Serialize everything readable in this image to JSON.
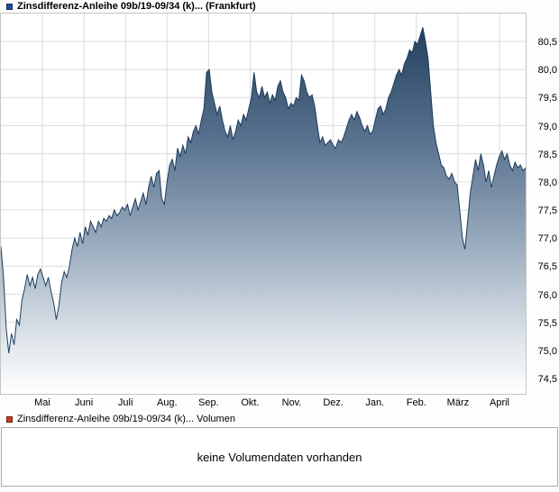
{
  "price_panel": {
    "legend_label": "Zinsdifferenz-Anleihe 09b/19-09/34 (k)... (Frankfurt)",
    "legend_color": "#1d4f9c"
  },
  "volume_panel": {
    "legend_label": "Zinsdifferenz-Anleihe 09b/19-09/34 (k)... Volumen",
    "legend_color": "#c23b22",
    "message": "keine Volumendaten vorhanden"
  },
  "chart_data": {
    "type": "area",
    "title": "Zinsdifferenz-Anleihe 09b/19-09/34 (k)... (Frankfurt)",
    "xlabel": "",
    "ylabel": "",
    "x_tick_labels": [
      "Mai",
      "Juni",
      "Juli",
      "Aug.",
      "Sep.",
      "Okt.",
      "Nov.",
      "Dez.",
      "Jan.",
      "Feb.",
      "März",
      "April"
    ],
    "y_tick_labels": [
      "80,5",
      "80,0",
      "79,5",
      "79,0",
      "78,5",
      "78,0",
      "77,5",
      "77,0",
      "76,5",
      "76,0",
      "75,5",
      "75,0",
      "74,5"
    ],
    "ylim": [
      74.5,
      80.5
    ],
    "y_step": 0.5,
    "grid": true,
    "legend_position": "top-left",
    "line_color": "#1c3c5c",
    "fill_gradient_top": "#23415f",
    "fill_gradient_bottom": "#ffffff",
    "series": [
      {
        "name": "Zinsdifferenz-Anleihe 09b/19-09/34 (k)",
        "values": [
          76.85,
          76.3,
          75.4,
          74.95,
          75.3,
          75.1,
          75.55,
          75.45,
          75.9,
          76.1,
          76.35,
          76.15,
          76.3,
          76.1,
          76.35,
          76.45,
          76.3,
          76.15,
          76.3,
          76.05,
          75.85,
          75.55,
          75.8,
          76.2,
          76.4,
          76.3,
          76.5,
          76.8,
          77.0,
          76.85,
          77.1,
          76.9,
          77.2,
          77.05,
          77.3,
          77.2,
          77.1,
          77.3,
          77.2,
          77.35,
          77.3,
          77.4,
          77.35,
          77.5,
          77.4,
          77.45,
          77.55,
          77.5,
          77.6,
          77.4,
          77.55,
          77.7,
          77.5,
          77.65,
          77.8,
          77.6,
          77.9,
          78.1,
          77.9,
          78.15,
          78.2,
          77.7,
          77.6,
          78.0,
          78.3,
          78.4,
          78.2,
          78.6,
          78.45,
          78.65,
          78.5,
          78.8,
          78.7,
          78.9,
          79.0,
          78.85,
          79.1,
          79.3,
          79.95,
          80.0,
          79.6,
          79.4,
          79.2,
          79.35,
          79.1,
          78.9,
          78.8,
          79.0,
          78.75,
          78.9,
          79.1,
          79.0,
          79.2,
          79.1,
          79.3,
          79.5,
          79.95,
          79.6,
          79.5,
          79.7,
          79.5,
          79.6,
          79.4,
          79.55,
          79.45,
          79.7,
          79.8,
          79.6,
          79.5,
          79.3,
          79.4,
          79.35,
          79.5,
          79.45,
          79.9,
          79.8,
          79.6,
          79.5,
          79.55,
          79.35,
          79.0,
          78.7,
          78.8,
          78.65,
          78.7,
          78.75,
          78.65,
          78.6,
          78.75,
          78.7,
          78.8,
          78.95,
          79.1,
          79.2,
          79.1,
          79.25,
          79.15,
          79.0,
          78.9,
          79.0,
          78.85,
          78.9,
          79.1,
          79.3,
          79.35,
          79.2,
          79.3,
          79.5,
          79.6,
          79.75,
          79.9,
          80.0,
          79.9,
          80.1,
          80.2,
          80.35,
          80.3,
          80.5,
          80.45,
          80.6,
          80.75,
          80.5,
          80.2,
          79.6,
          79.0,
          78.7,
          78.5,
          78.3,
          78.25,
          78.1,
          78.05,
          78.15,
          78.0,
          77.95,
          77.5,
          77.0,
          76.8,
          77.3,
          77.8,
          78.1,
          78.4,
          78.2,
          78.5,
          78.3,
          78.0,
          78.2,
          77.9,
          78.1,
          78.3,
          78.45,
          78.55,
          78.4,
          78.5,
          78.3,
          78.2,
          78.35,
          78.25,
          78.3,
          78.2,
          78.25
        ]
      }
    ]
  }
}
